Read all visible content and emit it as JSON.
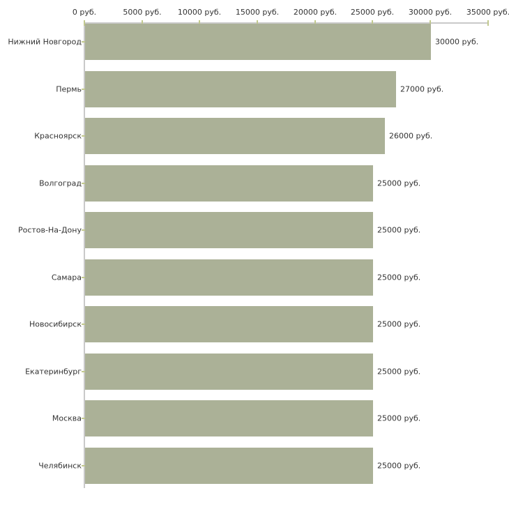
{
  "chart_data": {
    "type": "bar",
    "orientation": "horizontal",
    "title": "",
    "unit": "руб.",
    "categories": [
      "Нижний Новгород",
      "Пермь",
      "Красноярск",
      "Волгоград",
      "Ростов-На-Дону",
      "Самара",
      "Новосибирск",
      "Екатеринбург",
      "Москва",
      "Челябинск"
    ],
    "values": [
      30000,
      27000,
      26000,
      25000,
      25000,
      25000,
      25000,
      25000,
      25000,
      25000
    ],
    "value_labels": [
      "30000 руб.",
      "27000 руб.",
      "26000 руб.",
      "25000 руб.",
      "25000 руб.",
      "25000 руб.",
      "25000 руб.",
      "25000 руб.",
      "25000 руб.",
      "25000 руб."
    ],
    "x_axis": {
      "position": "top",
      "range": [
        0,
        35000
      ],
      "tick_values": [
        0,
        5000,
        10000,
        15000,
        20000,
        25000,
        30000,
        35000
      ],
      "tick_labels": [
        "0 руб.",
        "5000 руб.",
        "10000 руб.",
        "15000 руб.",
        "20000 руб.",
        "25000 руб.",
        "30000 руб.",
        "35000 руб."
      ]
    },
    "legend": "none",
    "grid": "off",
    "colors": {
      "bar": "#abb197",
      "axis_line": "#c9c9c9",
      "tick_mark": "#c2c98e",
      "text": "#333333",
      "background": "#ffffff"
    }
  }
}
